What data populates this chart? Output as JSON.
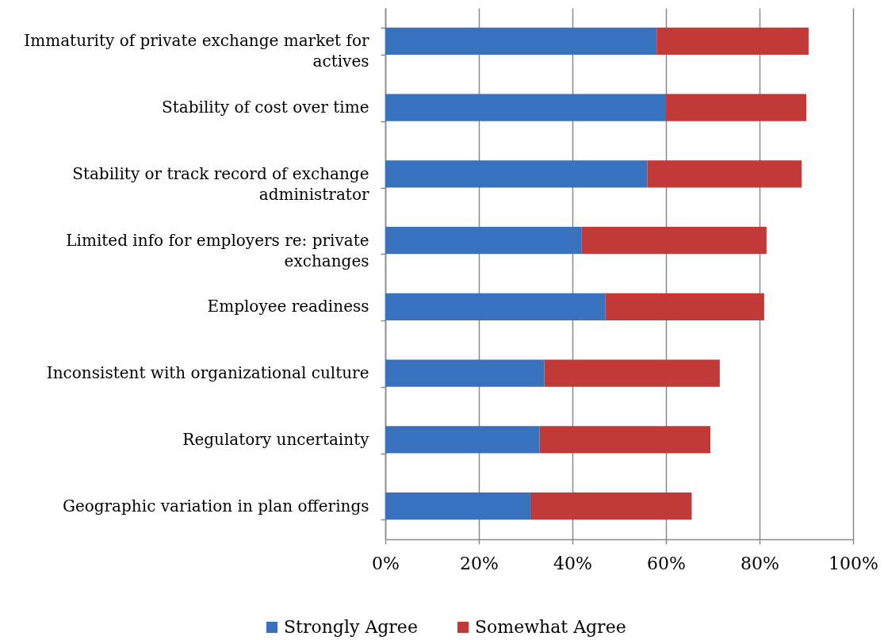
{
  "chart_data": {
    "type": "bar",
    "orientation": "horizontal",
    "stacked": true,
    "categories": [
      "Immaturity of private exchange market for actives",
      "Stability of cost over time",
      "Stability or track record of exchange administrator",
      "Limited info for employers re: private exchanges",
      "Employee readiness",
      "Inconsistent with organizational culture",
      "Regulatory uncertainty",
      "Geographic variation in plan offerings"
    ],
    "series": [
      {
        "name": "Strongly Agree",
        "color": "#3872bf",
        "values": [
          58,
          60,
          56,
          42,
          47,
          34,
          33,
          31
        ]
      },
      {
        "name": "Somewhat Agree",
        "color": "#c23a37",
        "values": [
          32.5,
          30,
          33,
          39.5,
          34,
          37.5,
          36.5,
          34.5
        ]
      }
    ],
    "xlim": [
      0,
      100
    ],
    "xticks": [
      {
        "value": 0,
        "label": "0%"
      },
      {
        "value": 20,
        "label": "20%"
      },
      {
        "value": 40,
        "label": "40%"
      },
      {
        "value": 60,
        "label": "60%"
      },
      {
        "value": 80,
        "label": "80%"
      },
      {
        "value": 100,
        "label": "100%"
      }
    ],
    "grid": "x",
    "legend": "bottom"
  }
}
